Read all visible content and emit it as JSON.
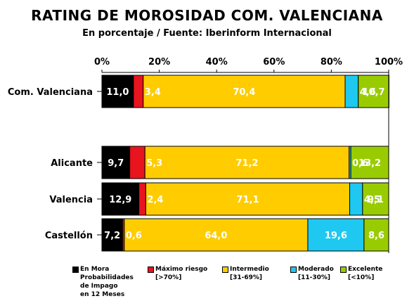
{
  "chart_data": {
    "type": "bar",
    "orientation": "horizontal",
    "stacked": true,
    "title": "RATING DE MOROSIDAD COM. VALENCIANA",
    "subtitle": "En porcentaje / Fuente: Iberinform Internacional",
    "xlim": [
      0,
      100
    ],
    "x_ticks": [
      "0%",
      "20%",
      "40%",
      "60%",
      "80%",
      "100%"
    ],
    "categories": [
      "Com. Valenciana",
      "Alicante",
      "Valencia",
      "Castellón"
    ],
    "series": [
      {
        "name": "En Mora",
        "legend_sub": "Probabilidades\nde Impago\nen 12 Meses",
        "color": "#000000",
        "label_color": "#ffffff",
        "values": [
          11.0,
          9.7,
          12.9,
          7.2
        ],
        "labels": [
          "11,0",
          "9,7",
          "12,9",
          "7,2"
        ]
      },
      {
        "name": "Máximo riesgo",
        "legend_sub": "[>70%]",
        "color": "#e8141e",
        "label_color": "#ffffff",
        "values": [
          3.4,
          5.3,
          2.4,
          0.6
        ],
        "labels": [
          "3,4",
          "5,3",
          "2,4",
          "0,6"
        ]
      },
      {
        "name": "Intermedio",
        "legend_sub": "[31-69%]",
        "color": "#ffcc00",
        "label_color": "#ffffff",
        "values": [
          70.4,
          71.2,
          71.1,
          64.0
        ],
        "labels": [
          "70,4",
          "71,2",
          "71,1",
          "64,0"
        ]
      },
      {
        "name": "Moderado",
        "legend_sub": "[11-30%]",
        "color": "#1ec8f0",
        "label_color": "#ffffff",
        "values": [
          4.6,
          0.6,
          4.5,
          19.6
        ],
        "labels": [
          "4,6",
          "0,6",
          "4,5",
          "19,6"
        ]
      },
      {
        "name": "Excelente",
        "legend_sub": "[<10%]",
        "color": "#99cc00",
        "label_color": "#ffffff",
        "values": [
          10.7,
          13.2,
          9.1,
          8.6
        ],
        "labels": [
          "10,7",
          "13,2",
          "9,1",
          "8,6"
        ]
      }
    ],
    "legend_position": "bottom",
    "grid": false
  }
}
